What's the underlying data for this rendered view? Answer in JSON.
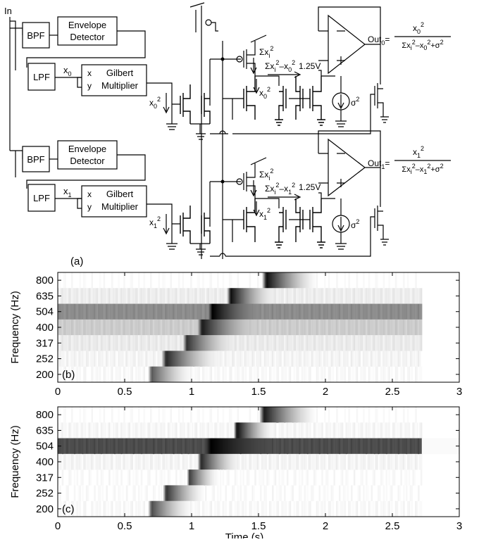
{
  "circuit": {
    "input_label": "In",
    "blocks": {
      "bpf": "BPF",
      "envelope_line1": "Envelope",
      "envelope_line2": "Detector",
      "lpf": "LPF",
      "gilbert_line1": "Gilbert",
      "gilbert_line2": "Multiplier",
      "port_x": "x",
      "port_y": "y"
    },
    "channel0": {
      "signal": "x",
      "signal_sub": "0",
      "square": "x",
      "square_sub": "0",
      "sum": "Σx",
      "sum_sub": "i",
      "diff": "Σx",
      "diff_sub1": "i",
      "diff_mid": "–x",
      "diff_sub2": "0",
      "vref": "1.25V",
      "sigma": "σ",
      "out": "Out",
      "out_sub": "0",
      "num": "x",
      "num_sub": "0",
      "den_a": "Σx",
      "den_sub1": "i",
      "den_b": "–x",
      "den_sub2": "0",
      "den_c": "+σ"
    },
    "channel1": {
      "signal": "x",
      "signal_sub": "1",
      "square": "x",
      "square_sub": "1",
      "sum": "Σx",
      "sum_sub": "i",
      "diff": "Σx",
      "diff_sub1": "i",
      "diff_mid": "–x",
      "diff_sub2": "1",
      "vref": "1.25V",
      "sigma": "σ",
      "out": "Out",
      "out_sub": "1",
      "num": "x",
      "num_sub": "1",
      "den_a": "Σx",
      "den_sub1": "i",
      "den_b": "–x",
      "den_sub2": "1",
      "den_c": "+σ"
    },
    "sup2": "2",
    "panel_label": "(a)"
  },
  "chart_data": [
    {
      "type": "heatmap",
      "panel_label": "(b)",
      "xlabel": "",
      "ylabel": "Frequency (Hz)",
      "xlim": [
        0,
        3
      ],
      "xticks": [
        "0",
        "0.5",
        "1",
        "1.5",
        "2",
        "2.5",
        "3"
      ],
      "yticks": [
        "800",
        "635",
        "504",
        "400",
        "317",
        "252",
        "200"
      ],
      "background": [
        0.0,
        0.07,
        0.45,
        0.2,
        0.08,
        0.04,
        0.02
      ],
      "end_time": 2.72,
      "bands": [
        {
          "freq": "800",
          "start": 1.52,
          "end": 1.95,
          "peak": 0.95
        },
        {
          "freq": "635",
          "start": 1.26,
          "end": 1.6,
          "peak": 0.95
        },
        {
          "freq": "504",
          "start": 1.12,
          "end": 1.5,
          "peak": 1.0
        },
        {
          "freq": "400",
          "start": 1.04,
          "end": 1.45,
          "peak": 0.9
        },
        {
          "freq": "317",
          "start": 0.93,
          "end": 1.3,
          "peak": 0.8
        },
        {
          "freq": "252",
          "start": 0.77,
          "end": 1.2,
          "peak": 0.85
        },
        {
          "freq": "200",
          "start": 0.67,
          "end": 1.0,
          "peak": 0.65
        }
      ]
    },
    {
      "type": "heatmap",
      "panel_label": "(c)",
      "xlabel": "Time (s)",
      "ylabel": "Frequency (Hz)",
      "xlim": [
        0,
        3
      ],
      "xticks": [
        "0",
        "0.5",
        "1",
        "1.5",
        "2",
        "2.5",
        "3"
      ],
      "yticks": [
        "800",
        "635",
        "504",
        "400",
        "317",
        "252",
        "200"
      ],
      "background": [
        0.0,
        0.03,
        0.7,
        0.04,
        0.01,
        0.01,
        0.02
      ],
      "end_time": 2.72,
      "bands": [
        {
          "freq": "800",
          "start": 1.5,
          "end": 1.95,
          "peak": 0.9
        },
        {
          "freq": "635",
          "start": 1.31,
          "end": 1.6,
          "peak": 0.95
        },
        {
          "freq": "504",
          "start": 1.1,
          "end": 1.6,
          "peak": 1.0
        },
        {
          "freq": "400",
          "start": 1.04,
          "end": 1.35,
          "peak": 0.85
        },
        {
          "freq": "317",
          "start": 0.96,
          "end": 1.2,
          "peak": 0.75
        },
        {
          "freq": "252",
          "start": 0.78,
          "end": 1.1,
          "peak": 0.8
        },
        {
          "freq": "200",
          "start": 0.67,
          "end": 1.0,
          "peak": 0.7
        }
      ]
    }
  ]
}
